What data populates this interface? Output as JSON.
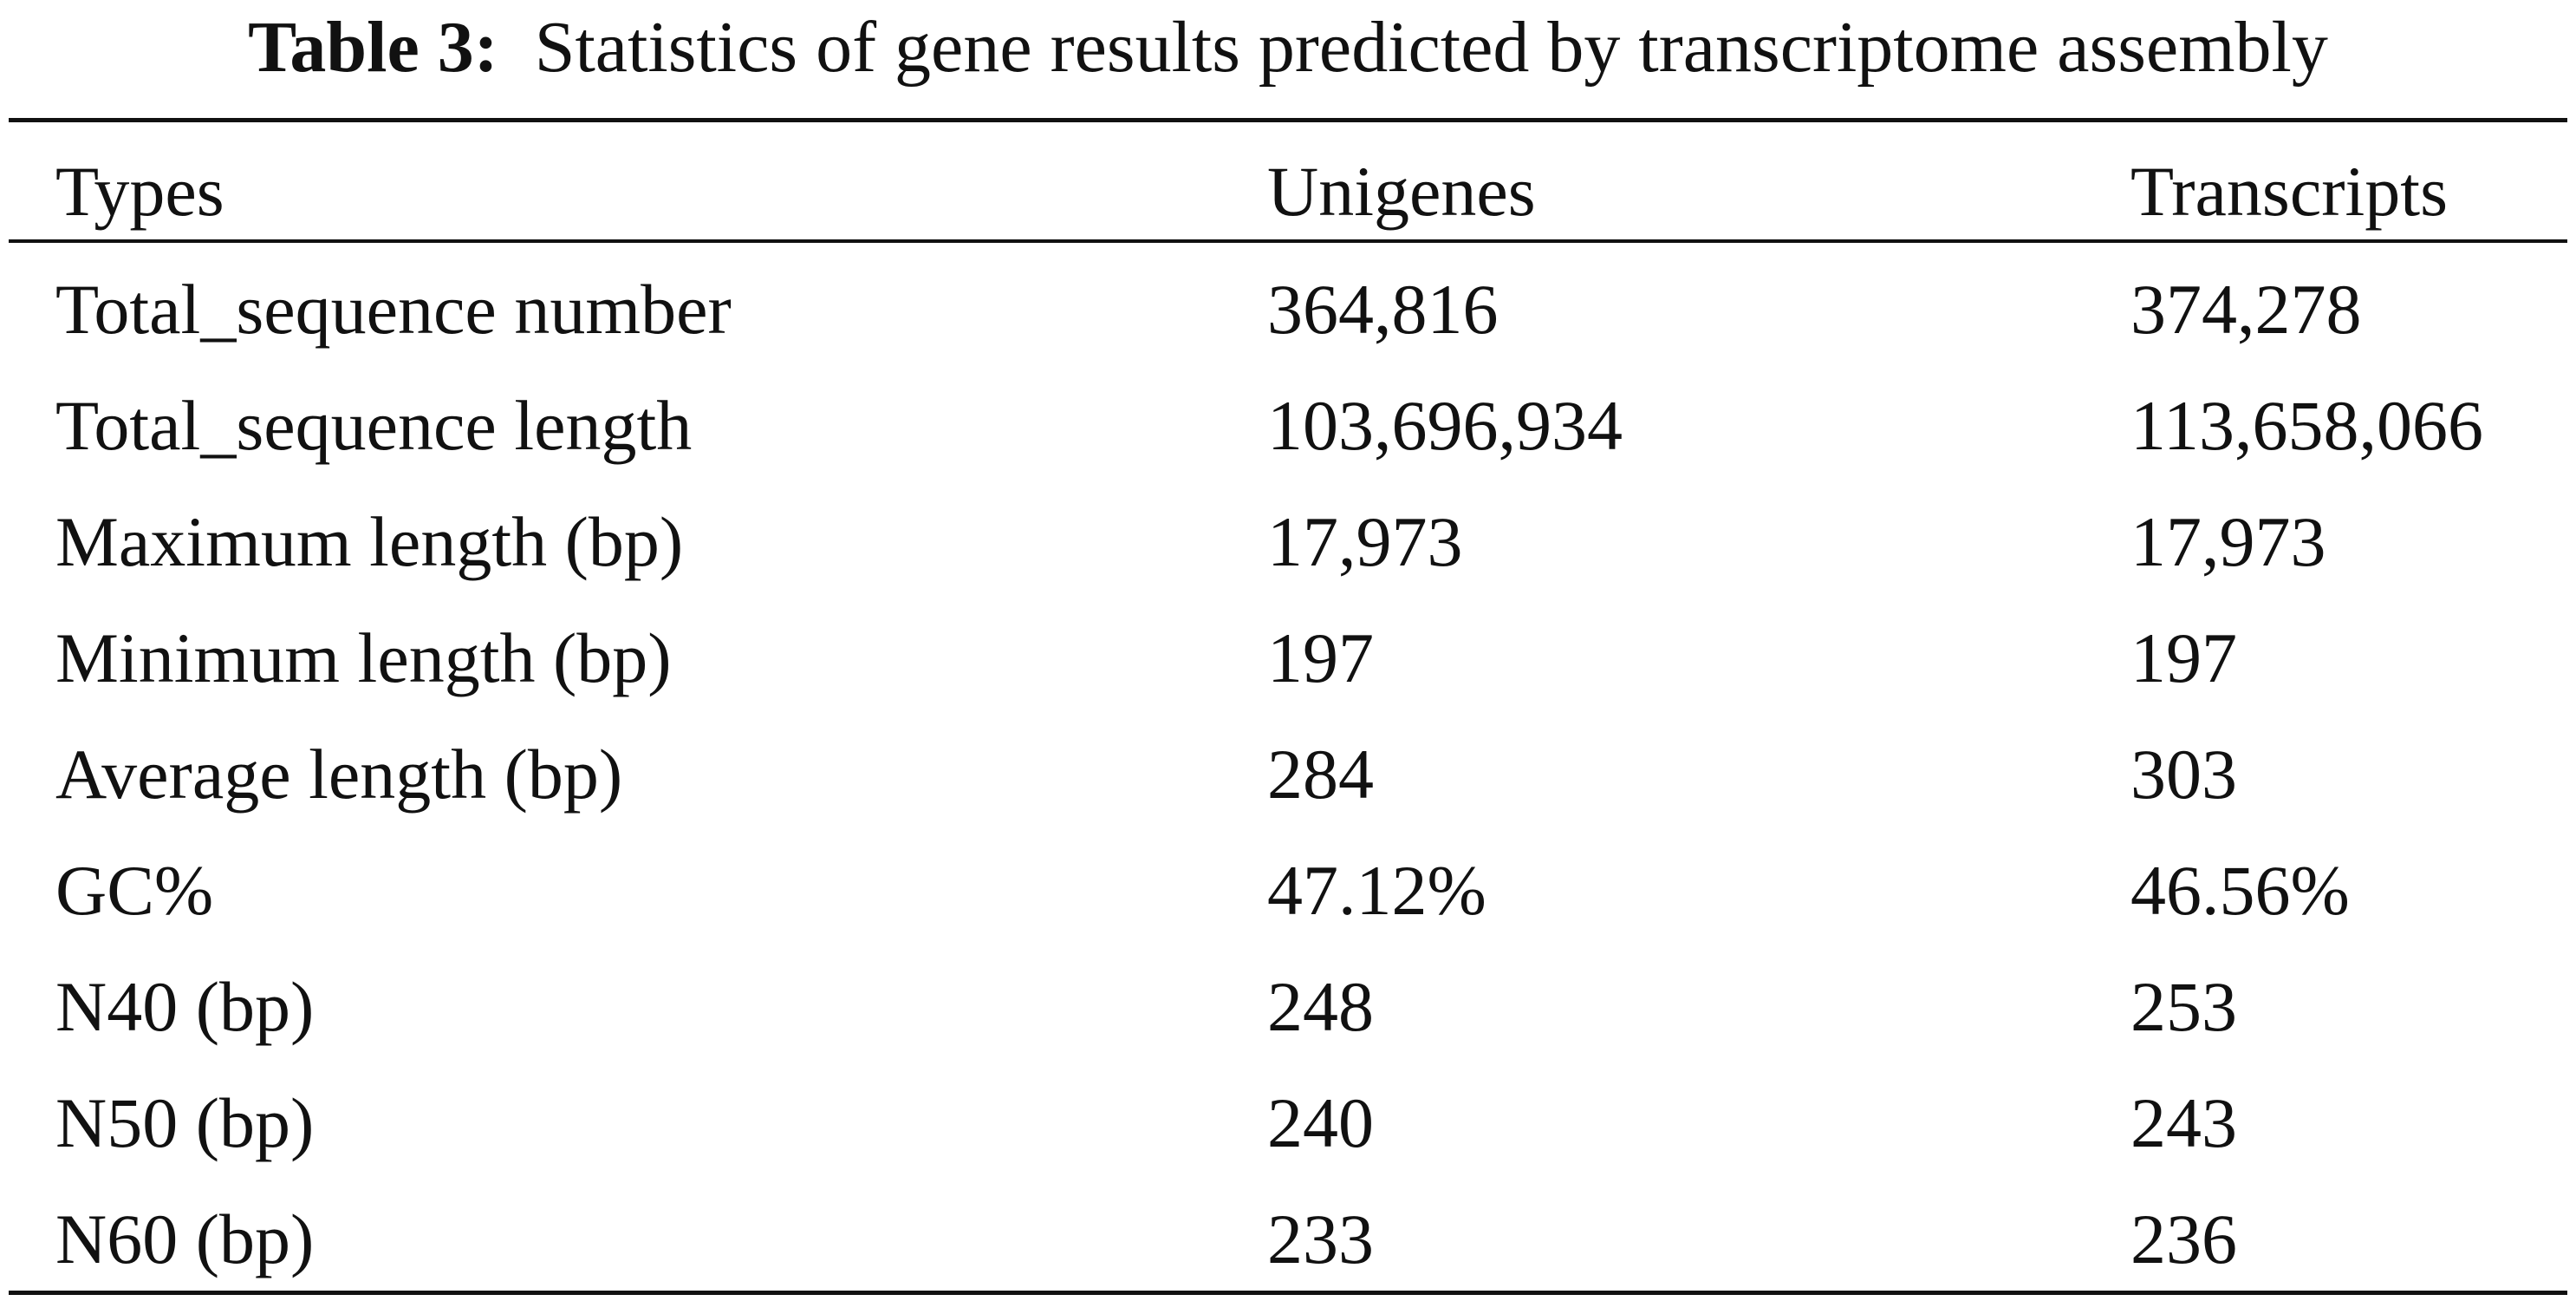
{
  "caption": {
    "label": "Table 3:",
    "title": "Statistics of gene results predicted by transcriptome assembly"
  },
  "table": {
    "columns": [
      "Types",
      "Unigenes",
      "Transcripts"
    ],
    "rows": [
      [
        "Total_sequence number",
        "364,816",
        "374,278"
      ],
      [
        "Total_sequence length",
        "103,696,934",
        "113,658,066"
      ],
      [
        "Maximum length (bp)",
        "17,973",
        "17,973"
      ],
      [
        "Minimum length (bp)",
        "197",
        "197"
      ],
      [
        "Average length (bp)",
        "284",
        "303"
      ],
      [
        "GC%",
        "47.12%",
        "46.56%"
      ],
      [
        "N40 (bp)",
        "248",
        "253"
      ],
      [
        "N50 (bp)",
        "240",
        "243"
      ],
      [
        "N60 (bp)",
        "233",
        "236"
      ]
    ]
  }
}
